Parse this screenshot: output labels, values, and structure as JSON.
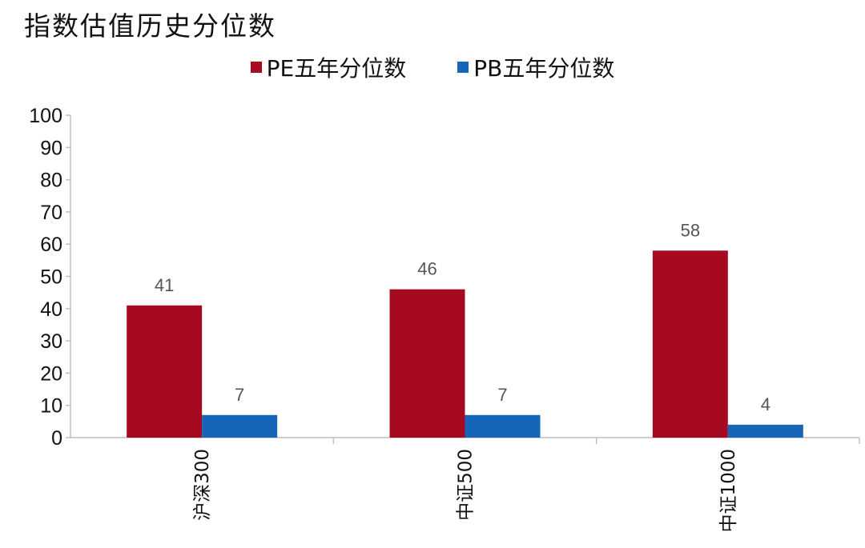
{
  "title": "指数估值历史分位数",
  "colors": {
    "pe": "#a50a21",
    "pb": "#1565b8",
    "axis": "#bfbfbf"
  },
  "chart_data": {
    "type": "bar",
    "title": "指数估值历史分位数",
    "categories": [
      "沪深300",
      "中证500",
      "中证1000"
    ],
    "series": [
      {
        "name": "PE五年分位数",
        "values": [
          41,
          46,
          58
        ]
      },
      {
        "name": "PB五年分位数",
        "values": [
          7,
          7,
          4
        ]
      }
    ],
    "ylim": [
      0,
      100
    ],
    "yticks": [
      0,
      10,
      20,
      30,
      40,
      50,
      60,
      70,
      80,
      90,
      100
    ],
    "legend_position": "top-center",
    "grid": false
  }
}
